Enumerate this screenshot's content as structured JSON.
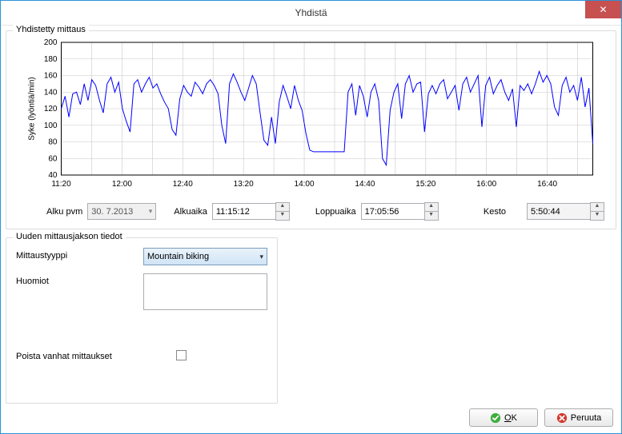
{
  "window": {
    "title": "Yhdistä"
  },
  "chart_group": {
    "legend": "Yhdistetty mittaus",
    "yaxis_label": "Syke (lyöntiä/min)",
    "type": "line",
    "ylim": [
      40,
      200
    ],
    "ytick_step": 20,
    "yticks": [
      40,
      60,
      80,
      100,
      120,
      140,
      160,
      180,
      200
    ],
    "xticks": [
      "11:20",
      "12:00",
      "12:40",
      "13:20",
      "14:00",
      "14:40",
      "15:20",
      "16:00",
      "16:40"
    ],
    "xlim_minutes": [
      680,
      1030
    ],
    "line_color": "#0000ff",
    "line_width": 1,
    "grid_color": "#c8c8c8",
    "border_color": "#000000",
    "background_color": "#ffffff",
    "series_y": [
      120,
      135,
      110,
      138,
      140,
      125,
      150,
      130,
      155,
      148,
      130,
      115,
      150,
      158,
      140,
      152,
      120,
      105,
      92,
      150,
      155,
      140,
      150,
      158,
      145,
      150,
      138,
      128,
      120,
      95,
      88,
      132,
      148,
      140,
      135,
      152,
      146,
      138,
      150,
      155,
      148,
      138,
      100,
      78,
      150,
      162,
      152,
      140,
      130,
      145,
      160,
      150,
      115,
      82,
      76,
      110,
      78,
      128,
      148,
      135,
      120,
      148,
      130,
      118,
      90,
      70,
      68,
      68,
      68,
      68,
      68,
      68,
      68,
      68,
      68,
      140,
      150,
      112,
      148,
      135,
      110,
      140,
      150,
      130,
      60,
      52,
      118,
      140,
      150,
      108,
      150,
      160,
      140,
      150,
      152,
      92,
      138,
      148,
      138,
      150,
      155,
      132,
      140,
      148,
      118,
      150,
      158,
      140,
      150,
      160,
      98,
      148,
      158,
      138,
      148,
      155,
      140,
      130,
      144,
      98,
      148,
      142,
      150,
      138,
      150,
      165,
      152,
      160,
      150,
      122,
      112,
      148,
      158,
      140,
      148,
      130,
      158,
      122,
      145,
      78
    ]
  },
  "time_row": {
    "alku_pvm_label": "Alku pvm",
    "alku_pvm_value": "30.  7.2013",
    "alkuaika_label": "Alkuaika",
    "alkuaika_value": "11:15:12",
    "loppuaika_label": "Loppuaika",
    "loppuaika_value": "17:05:56",
    "kesto_label": "Kesto",
    "kesto_value": "5:50:44"
  },
  "details": {
    "legend": "Uuden mittausjakson tiedot",
    "type_label": "Mittaustyyppi",
    "type_value": "Mountain biking",
    "notes_label": "Huomiot",
    "notes_value": "",
    "delete_old_label": "Poista vanhat mittaukset",
    "delete_old_checked": false
  },
  "buttons": {
    "ok": "OK",
    "cancel": "Peruuta"
  },
  "colors": {
    "window_border": "#2a92d8",
    "close_bg": "#c75050",
    "select_border": "#7b9ebd",
    "select_bg_top": "#eaf3fb",
    "select_bg_bottom": "#cfe4f7",
    "ok_icon": "#3fae3f",
    "cancel_icon": "#d43a2f"
  }
}
